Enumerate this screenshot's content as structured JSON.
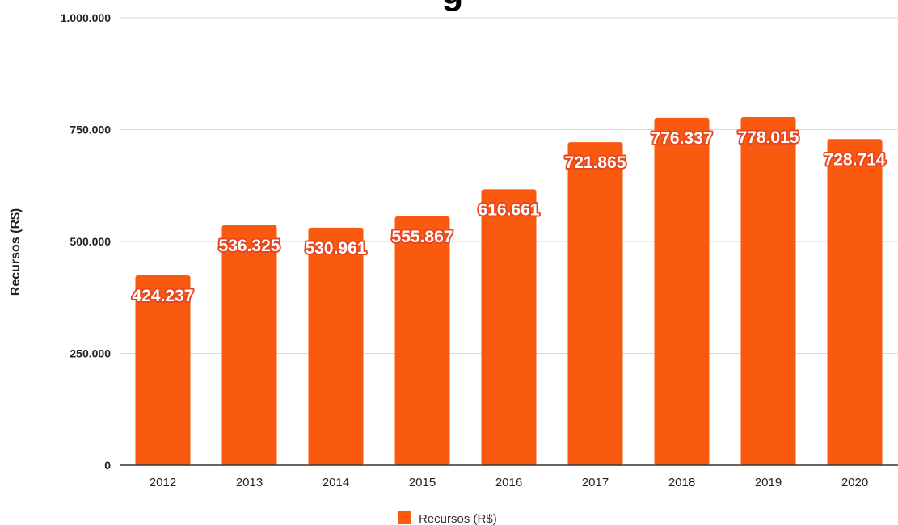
{
  "chart_data": {
    "type": "bar",
    "title_fragment": "g",
    "ylabel": "Recursos (R$)",
    "xlabel": "",
    "ylim": [
      0,
      1000000
    ],
    "y_ticks": [
      0,
      250000,
      500000,
      750000,
      1000000
    ],
    "y_tick_labels": [
      "0",
      "250.000",
      "500.000",
      "750.000",
      "1.000.000"
    ],
    "categories": [
      "2012",
      "2013",
      "2014",
      "2015",
      "2016",
      "2017",
      "2018",
      "2019",
      "2020"
    ],
    "series": [
      {
        "name": "Recursos (R$)",
        "color": "#fa5a0f",
        "values": [
          424237,
          536325,
          530961,
          555867,
          616661,
          721865,
          776337,
          778015,
          728714
        ],
        "labels": [
          "424.237",
          "536.325",
          "530.961",
          "555.867",
          "616.661",
          "721.865",
          "776.337",
          "778.015",
          "728.714"
        ]
      }
    ],
    "grid": true,
    "legend": "bottom"
  }
}
